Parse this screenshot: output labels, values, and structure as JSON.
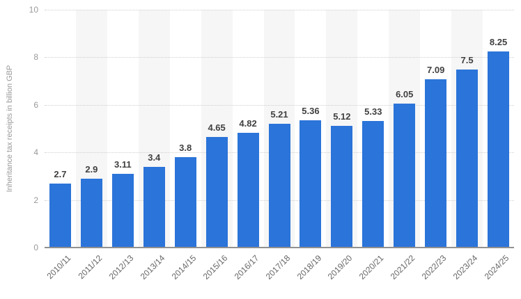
{
  "chart_data": {
    "type": "bar",
    "title": "",
    "xlabel": "",
    "ylabel": "Inheritance tax receipts in billion GBP",
    "ylim": [
      0,
      10
    ],
    "yticks": [
      0,
      2,
      4,
      6,
      8,
      10
    ],
    "grid": "horizontal-dotted",
    "legend": "none",
    "plot_bands": "alternating vertical stripes behind even categories",
    "categories": [
      "2010/11",
      "2011/12",
      "2012/13",
      "2013/14",
      "2014/15",
      "2015/16",
      "2016/17",
      "2017/18",
      "2018/19",
      "2019/20",
      "2020/21",
      "2021/22",
      "2022/23",
      "2023/24",
      "2024/25"
    ],
    "values": [
      2.7,
      2.9,
      3.11,
      3.4,
      3.8,
      4.65,
      4.82,
      5.21,
      5.36,
      5.12,
      5.33,
      6.05,
      7.09,
      7.5,
      8.25
    ],
    "value_labels": [
      "2.7",
      "2.9",
      "3.11",
      "3.4",
      "3.8",
      "4.65",
      "4.82",
      "5.21",
      "5.36",
      "5.12",
      "5.33",
      "6.05",
      "7.09",
      "7.5",
      "8.25"
    ]
  },
  "colors": {
    "background": "#ffffff",
    "bar": "#2b74d9",
    "band": "#f6f6f6",
    "gridline": "#cfcfcf",
    "axis_line": "#919191",
    "value_label": "#404040",
    "x_tick": "#666666",
    "y_tick": "#999999",
    "axis_title": "#999999"
  }
}
